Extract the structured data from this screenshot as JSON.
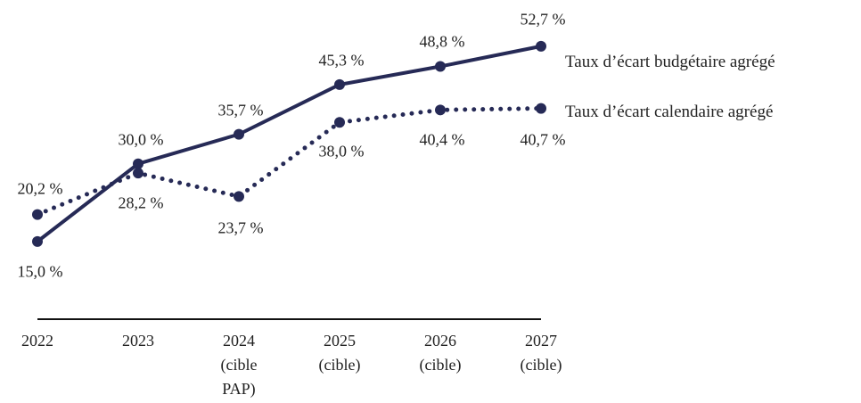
{
  "chart_data": {
    "type": "line",
    "categories": [
      "2022",
      "2023",
      "2024\n(cible\nPAP)",
      "2025\n(cible)",
      "2026\n(cible)",
      "2027\n(cible)"
    ],
    "ylim": [
      0,
      55
    ],
    "series": [
      {
        "name": "Taux d’écart budgétaire agrégé",
        "color": "#262a56",
        "style": "solid",
        "values": [
          15.0,
          30.0,
          35.7,
          45.3,
          48.8,
          52.7
        ],
        "value_labels": [
          "15,0 %",
          "30,0 %",
          "35,7 %",
          "45,3 %",
          "48,8 %",
          "52,7 %"
        ]
      },
      {
        "name": "Taux d’écart calendaire agrégé",
        "color": "#262a56",
        "style": "dotted",
        "values": [
          20.2,
          28.2,
          23.7,
          38.0,
          40.4,
          40.7
        ],
        "value_labels": [
          "20,2 %",
          "28,2 %",
          "23,7 %",
          "38,0 %",
          "40,4 %",
          "40,7 %"
        ]
      }
    ]
  }
}
